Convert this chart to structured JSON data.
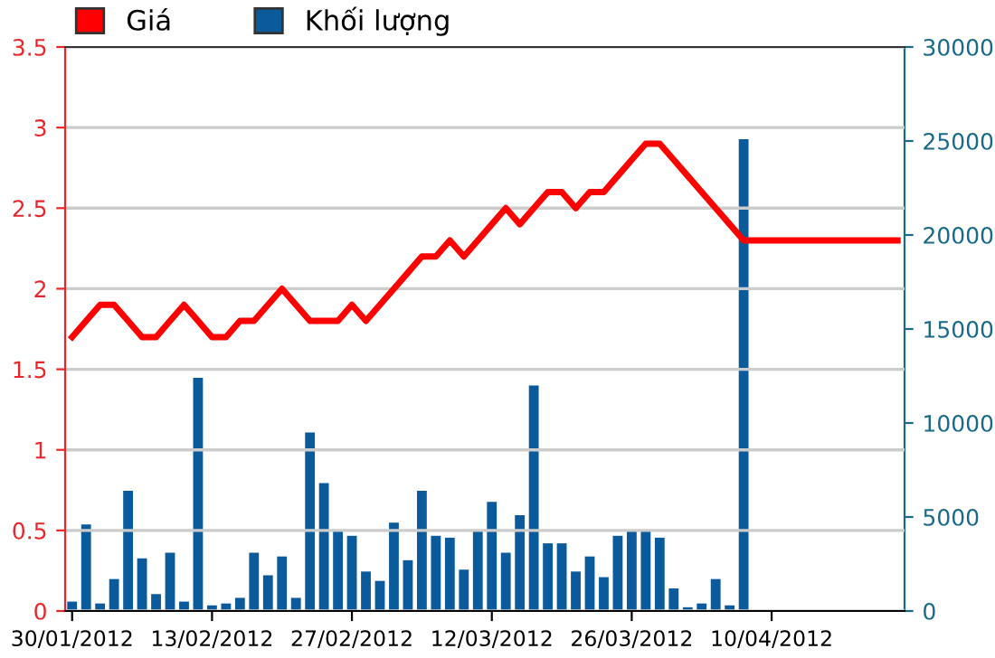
{
  "chart_data": {
    "type": "line",
    "categories": [
      "30/01/2012",
      null,
      null,
      null,
      null,
      null,
      null,
      null,
      null,
      null,
      "13/02/2012",
      null,
      null,
      null,
      null,
      null,
      null,
      null,
      null,
      null,
      "27/02/2012",
      null,
      null,
      null,
      null,
      null,
      null,
      null,
      null,
      null,
      "12/03/2012",
      null,
      null,
      null,
      null,
      null,
      null,
      null,
      null,
      null,
      "26/03/2012",
      null,
      null,
      null,
      null,
      null,
      null,
      null,
      null,
      null,
      "10/04/2012",
      null,
      null,
      null,
      null,
      null,
      null,
      null,
      null,
      null
    ],
    "series": [
      {
        "name": "Giá",
        "color": "#ff0000",
        "values": [
          1.7,
          1.8,
          1.9,
          1.9,
          1.8,
          1.7,
          1.7,
          1.8,
          1.9,
          1.8,
          1.7,
          1.7,
          1.8,
          1.8,
          1.9,
          2.0,
          1.9,
          1.8,
          1.8,
          1.8,
          1.9,
          1.8,
          1.9,
          2.0,
          2.1,
          2.2,
          2.2,
          2.3,
          2.2,
          2.3,
          2.4,
          2.5,
          2.4,
          2.5,
          2.6,
          2.6,
          2.5,
          2.6,
          2.6,
          2.7,
          2.8,
          2.9,
          2.9,
          2.8,
          2.7,
          2.6,
          2.5,
          2.4,
          2.3,
          2.3,
          2.3,
          2.3,
          2.3,
          2.3,
          2.3,
          2.3,
          2.3,
          2.3,
          2.3,
          2.3
        ]
      },
      {
        "name": "Khối lượng",
        "type": "bar",
        "axis": "y2",
        "color": "#0b5a9c",
        "values": [
          500,
          4600,
          400,
          1700,
          6400,
          2800,
          900,
          3100,
          500,
          12400,
          300,
          400,
          700,
          3100,
          1900,
          2900,
          700,
          9500,
          6800,
          4300,
          4000,
          2100,
          1600,
          4700,
          2700,
          6400,
          4000,
          3900,
          2200,
          4300,
          5800,
          3100,
          5100,
          12000,
          3600,
          3600,
          2100,
          2900,
          1800,
          4000,
          4300,
          4300,
          3900,
          1200,
          200,
          400,
          1700,
          300,
          25100,
          null,
          null,
          null,
          null,
          null,
          null,
          null,
          null,
          null,
          null,
          null
        ]
      }
    ],
    "ylim": [
      0,
      3.5
    ],
    "yticks": [
      0,
      0.5,
      1,
      1.5,
      2,
      2.5,
      3,
      3.5
    ],
    "y2lim": [
      0,
      30000
    ],
    "y2ticks": [
      0,
      5000,
      10000,
      15000,
      20000,
      25000,
      30000
    ],
    "grid": "y",
    "legend": "top left",
    "marker": "none",
    "line_style": "solid"
  }
}
